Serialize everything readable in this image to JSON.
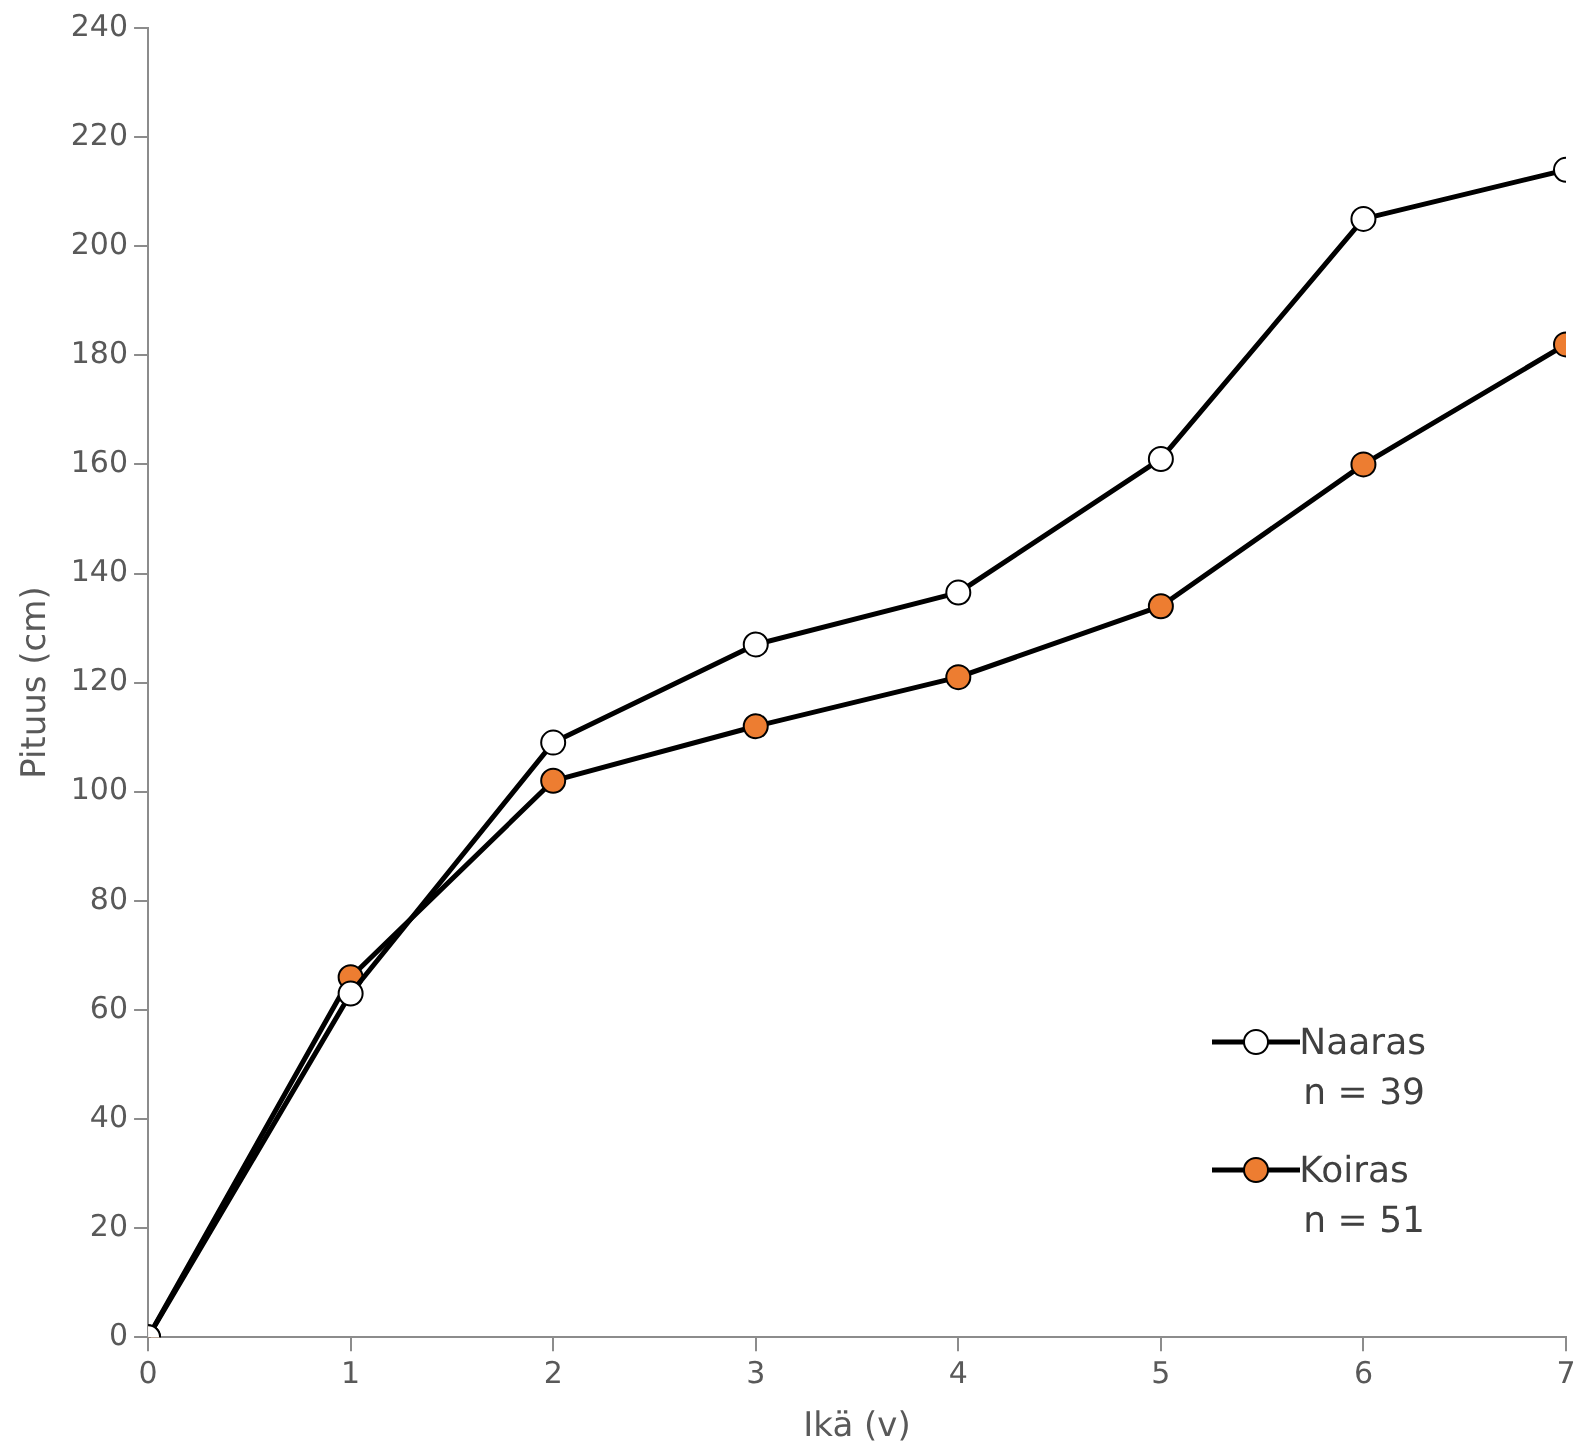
{
  "chart_data": {
    "type": "line",
    "xlabel": "Ikä (v)",
    "ylabel": "Pituus (cm)",
    "x": [
      0,
      1,
      2,
      3,
      4,
      5,
      6,
      7
    ],
    "series": [
      {
        "name": "Naaras",
        "color": "#ffffff",
        "values": [
          0,
          63,
          109,
          127,
          136.5,
          161,
          205,
          214
        ]
      },
      {
        "name": "Koiras",
        "color": "#ed7d31",
        "values": [
          0,
          66,
          102,
          112,
          121,
          134,
          160,
          182
        ]
      }
    ],
    "xlim": [
      0,
      7
    ],
    "xticks": [
      0,
      1,
      2,
      3,
      4,
      5,
      6,
      7
    ],
    "ylim": [
      0,
      240
    ],
    "yticks": [
      0,
      20,
      40,
      60,
      80,
      100,
      120,
      140,
      160,
      180,
      200,
      220,
      240
    ],
    "grid": false,
    "legend": "bottom right",
    "marker": "circle",
    "line_style": "solid",
    "annotations": [
      "n = 39",
      "n = 51"
    ]
  }
}
